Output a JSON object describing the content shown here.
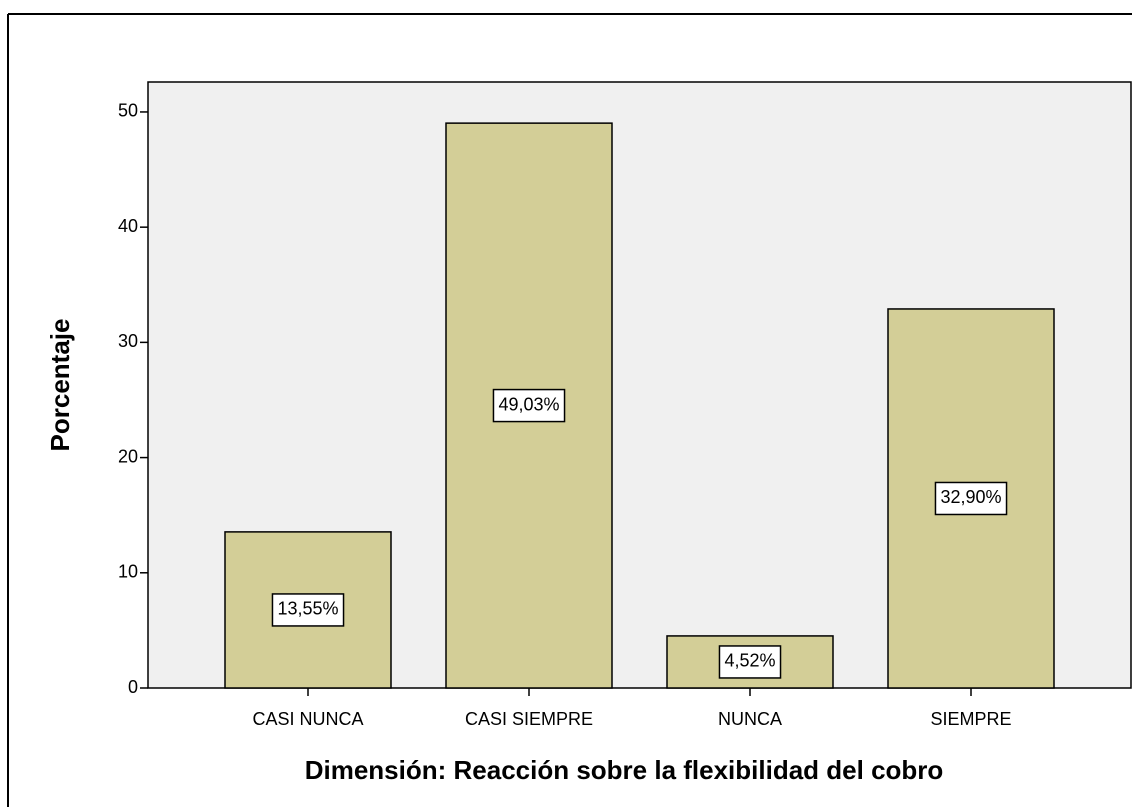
{
  "chart_data": {
    "type": "bar",
    "x_label": "Dimensión: Reacción sobre la flexibilidad del cobro",
    "y_label": "Porcentaje",
    "categories": [
      "CASI NUNCA",
      "CASI SIEMPRE",
      "NUNCA",
      "SIEMPRE"
    ],
    "values": [
      13.55,
      49.03,
      4.52,
      32.9
    ],
    "value_labels": [
      "13,55%",
      "49,03%",
      "4,52%",
      "32,90%"
    ],
    "color": "#d3ce97",
    "ylim": [
      0,
      52.6
    ],
    "yticks": [
      0,
      10,
      20,
      30,
      40,
      50
    ],
    "grid": false
  }
}
